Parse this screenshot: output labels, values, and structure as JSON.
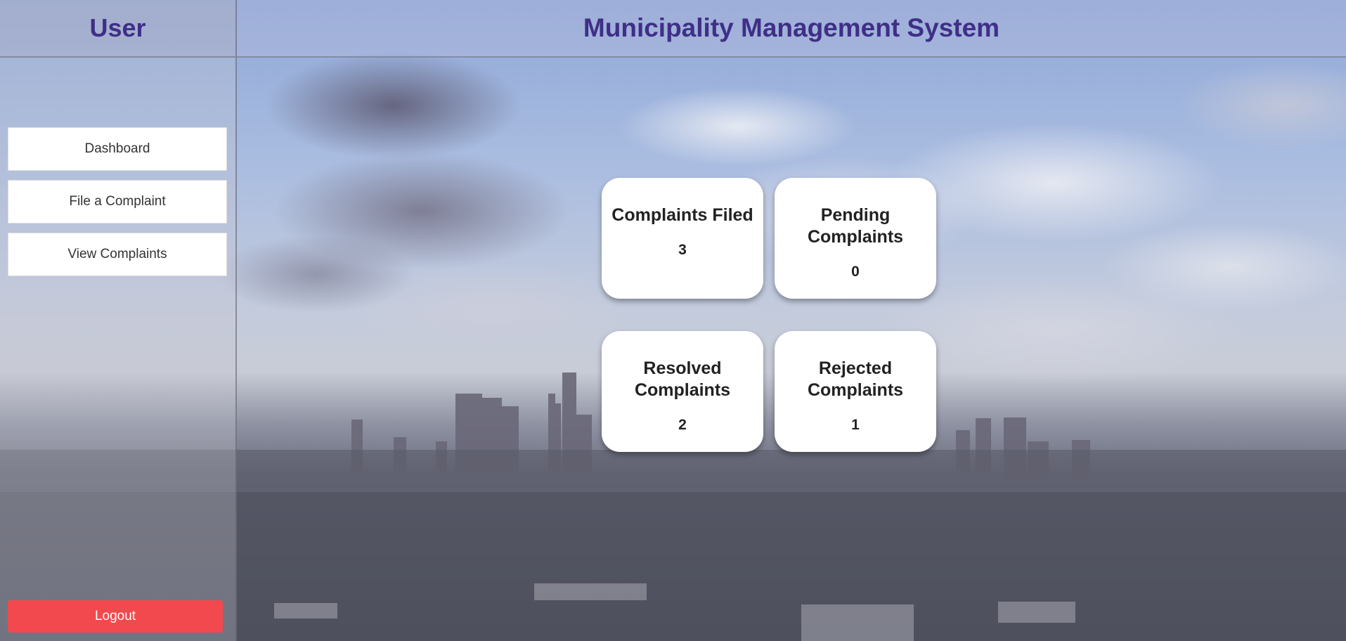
{
  "sidebar": {
    "title": "User",
    "items": [
      {
        "label": "Dashboard"
      },
      {
        "label": "File a Complaint"
      },
      {
        "label": "View Complaints"
      }
    ],
    "logout_label": "Logout"
  },
  "header": {
    "title": "Municipality Management System"
  },
  "stats": [
    {
      "label": "Complaints Filed",
      "value": "3"
    },
    {
      "label": "Pending Complaints",
      "value": "0"
    },
    {
      "label": "Resolved Complaints",
      "value": "2"
    },
    {
      "label": "Rejected Complaints",
      "value": "1"
    }
  ],
  "colors": {
    "title": "#3f2f87",
    "logout": "#f2494e",
    "card_bg": "#ffffff"
  }
}
